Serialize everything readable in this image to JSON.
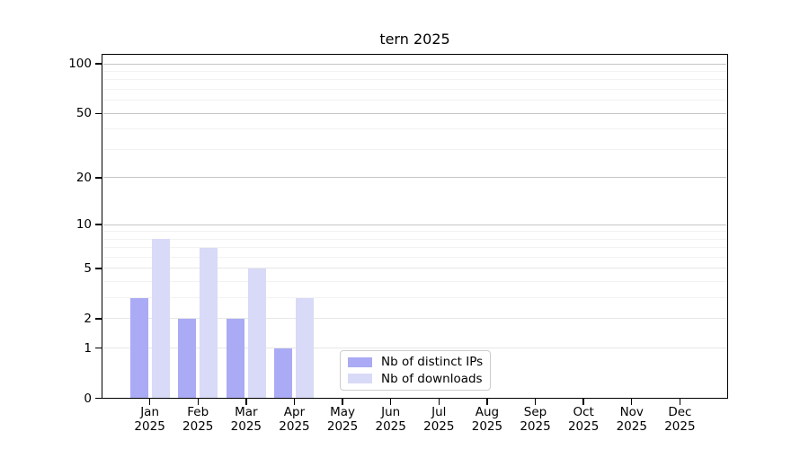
{
  "title": "tern 2025",
  "legend": {
    "items": [
      {
        "label": "Nb of distinct IPs"
      },
      {
        "label": "Nb of downloads"
      }
    ]
  },
  "colors": {
    "distinct_ips": "#aaaaf5",
    "downloads": "#d9d9f8",
    "grid_major": "#c6c6c6",
    "grid_mid": "#e7e7e7",
    "grid_minor": "#f2f2f2",
    "axis": "#000000"
  },
  "chart_data": {
    "type": "bar",
    "title": "tern 2025",
    "categories": [
      "Jan",
      "Feb",
      "Mar",
      "Apr",
      "May",
      "Jun",
      "Jul",
      "Aug",
      "Sep",
      "Oct",
      "Nov",
      "Dec"
    ],
    "year_label": "2025",
    "series": [
      {
        "name": "Nb of distinct IPs",
        "color": "#aaaaf5",
        "values": [
          3,
          2,
          2,
          1,
          0,
          0,
          0,
          0,
          0,
          0,
          0,
          0
        ]
      },
      {
        "name": "Nb of downloads",
        "color": "#d9d9f8",
        "values": [
          8,
          7,
          5,
          3,
          0,
          0,
          0,
          0,
          0,
          0,
          0,
          0
        ]
      }
    ],
    "yscale": "log10(1+x)",
    "ylim": [
      0,
      115
    ],
    "yticks": [
      0,
      1,
      2,
      5,
      10,
      20,
      50,
      100
    ],
    "yticks_minor": [
      3,
      4,
      6,
      7,
      8,
      9,
      30,
      40,
      60,
      70,
      80,
      90
    ],
    "xlabel": "",
    "ylabel": "",
    "grid": "horizontal",
    "legend_position": "lower center"
  }
}
